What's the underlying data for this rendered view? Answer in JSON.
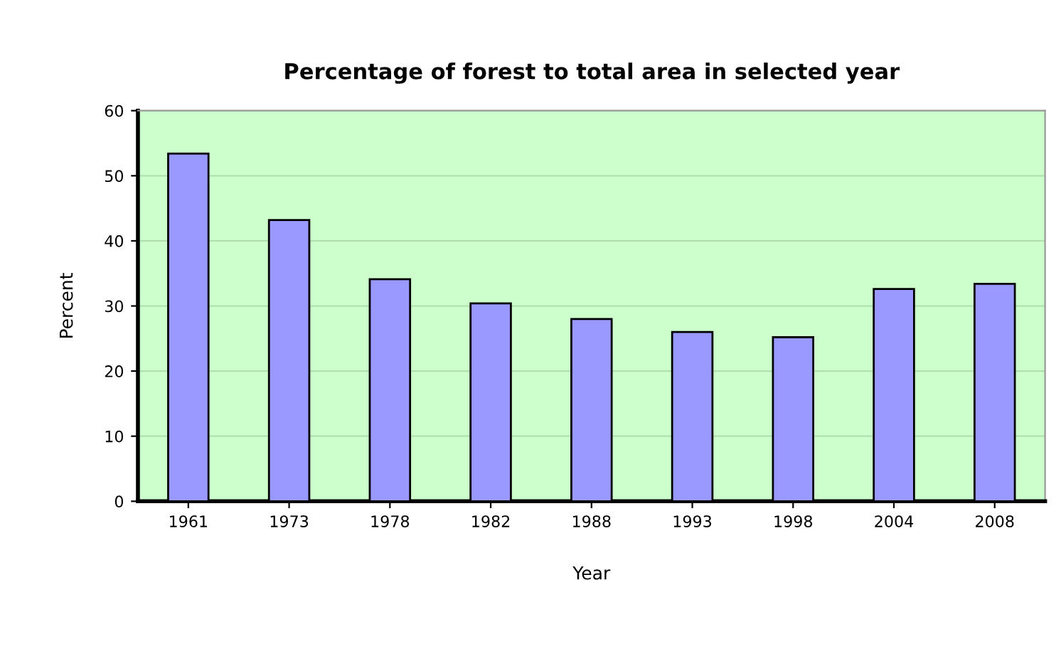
{
  "chart_data": {
    "type": "bar",
    "title": "Percentage of forest to total area in selected year",
    "xlabel": "Year",
    "ylabel": "Percent",
    "categories": [
      "1961",
      "1973",
      "1978",
      "1982",
      "1988",
      "1993",
      "1998",
      "2004",
      "2008"
    ],
    "values": [
      53.4,
      43.2,
      34.1,
      30.4,
      28.0,
      26.0,
      25.2,
      32.6,
      33.4
    ],
    "color": "#9999ff",
    "ylim": [
      0,
      60
    ],
    "yticks": [
      0,
      10,
      20,
      30,
      40,
      50,
      60
    ],
    "grid": "y"
  }
}
